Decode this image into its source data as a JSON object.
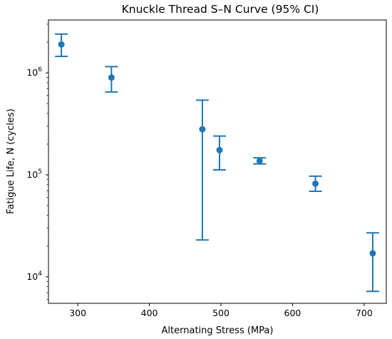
{
  "chart_data": {
    "type": "scatter",
    "title": "Knuckle Thread S–N Curve (95% CI)",
    "xlabel": "Alternating Stress (MPa)",
    "ylabel": "Fatigue Life, N (cycles)",
    "xlim": [
      259,
      731
    ],
    "ylim": [
      5500,
      3300000
    ],
    "y_scale": "log",
    "x_ticks": [
      300,
      400,
      500,
      600,
      700
    ],
    "y_ticks": [
      {
        "value": 10000,
        "base": "10",
        "exp": "4"
      },
      {
        "value": 100000,
        "base": "10",
        "exp": "5"
      },
      {
        "value": 1000000,
        "base": "10",
        "exp": "6"
      }
    ],
    "grid": false,
    "legend": "none",
    "color": "#1f77b4",
    "points": [
      {
        "x": 277,
        "y": 1900000,
        "lower": 1450000,
        "upper": 2400000
      },
      {
        "x": 347,
        "y": 900000,
        "lower": 650000,
        "upper": 1150000
      },
      {
        "x": 474,
        "y": 280000,
        "lower": 23000,
        "upper": 540000
      },
      {
        "x": 498,
        "y": 175000,
        "lower": 112000,
        "upper": 240000
      },
      {
        "x": 554,
        "y": 137000,
        "lower": 128000,
        "upper": 147000
      },
      {
        "x": 632,
        "y": 82000,
        "lower": 69000,
        "upper": 97000
      },
      {
        "x": 712,
        "y": 17000,
        "lower": 7200,
        "upper": 27000
      }
    ]
  }
}
